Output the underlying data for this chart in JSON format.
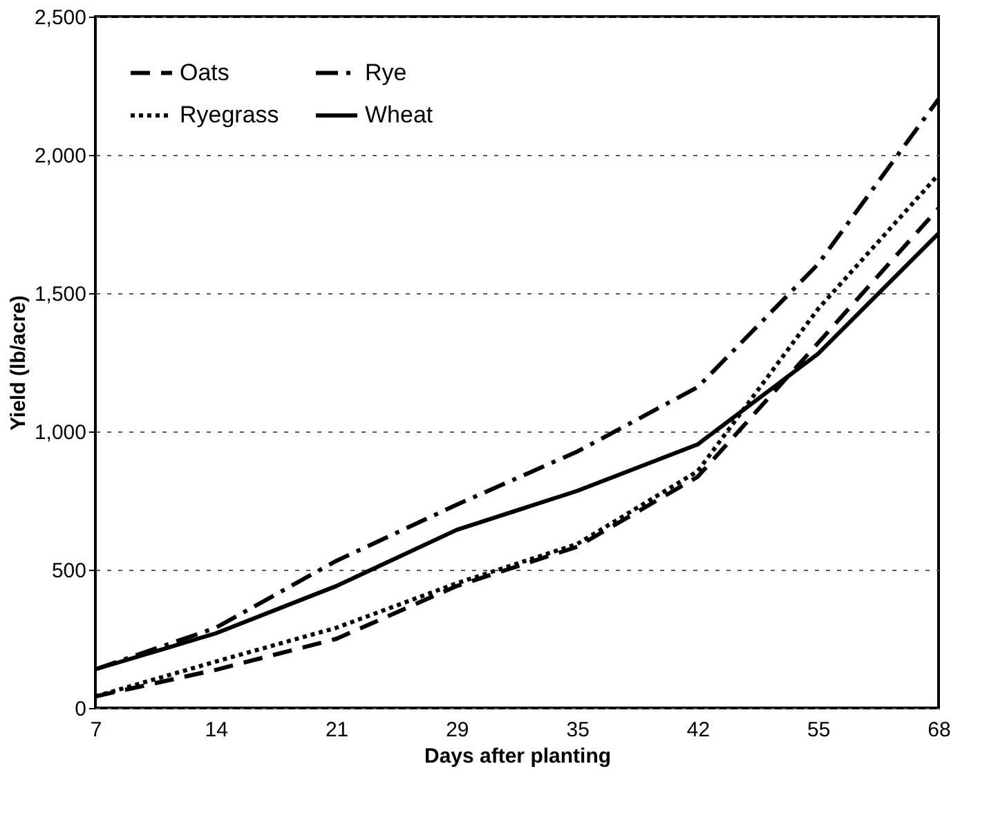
{
  "chart_data": {
    "type": "line",
    "xlabel": "Days after planting",
    "ylabel": "Yield (lb/acre)",
    "categories": [
      "7",
      "14",
      "21",
      "29",
      "35",
      "42",
      "55",
      "68"
    ],
    "series": [
      {
        "name": "Oats",
        "color": "#000000",
        "line_style": "dashed",
        "values": [
          42,
          138,
          250,
          441,
          583,
          836,
          1320,
          1807
        ]
      },
      {
        "name": "Rye",
        "color": "#000000",
        "line_style": "dashdot",
        "values": [
          140,
          290,
          532,
          735,
          927,
          1160,
          1605,
          2202
        ]
      },
      {
        "name": "Ryegrass",
        "color": "#000000",
        "line_style": "dotted",
        "values": [
          42,
          168,
          290,
          451,
          593,
          856,
          1443,
          1929
        ]
      },
      {
        "name": "Wheat",
        "color": "#000000",
        "line_style": "solid",
        "values": [
          140,
          270,
          441,
          644,
          785,
          953,
          1281,
          1716
        ]
      }
    ],
    "ylim": [
      0,
      2500
    ],
    "yticks": [
      0,
      500,
      {
        "value": 1000,
        "label": "1,000"
      },
      {
        "value": 1500,
        "label": "1,500"
      },
      {
        "value": 2000,
        "label": "2,000"
      },
      {
        "value": 2500,
        "label": "2,500"
      }
    ],
    "grid": "y",
    "legend": "top left",
    "marker": "none"
  }
}
